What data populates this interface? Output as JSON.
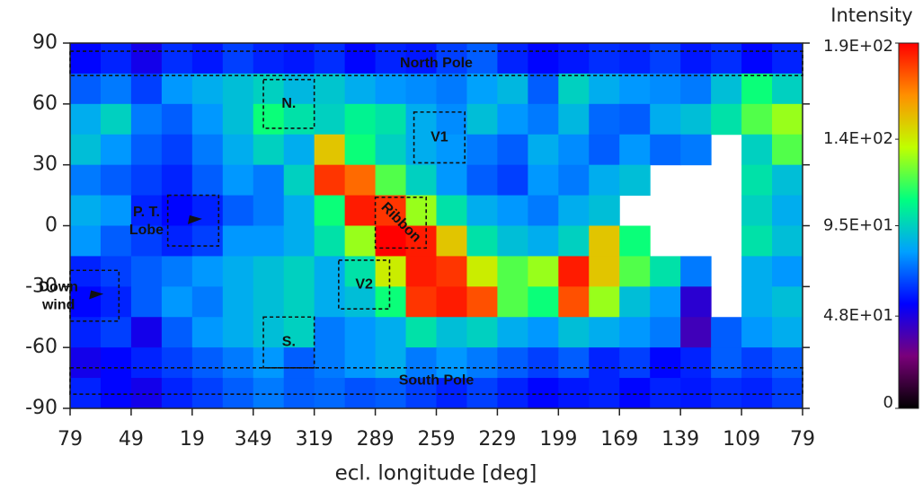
{
  "chart_data": {
    "type": "heatmap",
    "colorbar_title": "Intensity",
    "x_label": "ecl. longitude [deg]",
    "xlim": [
      439,
      79
    ],
    "xticks": [
      {
        "value": 439,
        "label": "79"
      },
      {
        "value": 409,
        "label": "49"
      },
      {
        "value": 379,
        "label": "19"
      },
      349,
      319,
      289,
      259,
      229,
      199,
      169,
      139,
      109,
      79
    ],
    "ylim": [
      -90,
      90
    ],
    "yticks": [
      90,
      60,
      30,
      0,
      -30,
      -60,
      -90
    ],
    "xbins": [
      439,
      424,
      409,
      394,
      379,
      364,
      349,
      334,
      319,
      304,
      289,
      274,
      259,
      244,
      229,
      214,
      199,
      184,
      169,
      154,
      139,
      124,
      109,
      94,
      79
    ],
    "ybins": [
      90,
      75,
      60,
      45,
      30,
      15,
      0,
      -15,
      -30,
      -45,
      -60,
      -75,
      -90
    ],
    "z": [
      [
        55,
        60,
        50,
        62,
        58,
        65,
        60,
        58,
        62,
        55,
        60,
        58,
        65,
        70,
        60,
        55,
        58,
        62,
        60,
        65,
        58,
        62,
        55,
        60
      ],
      [
        70,
        75,
        65,
        80,
        85,
        90,
        95,
        88,
        92,
        85,
        80,
        78,
        75,
        82,
        88,
        70,
        95,
        85,
        80,
        78,
        75,
        90,
        110,
        95
      ],
      [
        85,
        95,
        75,
        70,
        80,
        90,
        110,
        100,
        95,
        105,
        100,
        85,
        78,
        90,
        80,
        75,
        88,
        72,
        70,
        85,
        90,
        100,
        120,
        130
      ],
      [
        90,
        80,
        70,
        65,
        75,
        85,
        95,
        85,
        150,
        110,
        95,
        85,
        80,
        75,
        70,
        85,
        78,
        70,
        80,
        72,
        75,
        null,
        95,
        120
      ],
      [
        75,
        70,
        65,
        60,
        70,
        80,
        75,
        95,
        180,
        170,
        120,
        95,
        80,
        70,
        65,
        80,
        75,
        85,
        90,
        null,
        null,
        null,
        100,
        90
      ],
      [
        85,
        80,
        60,
        55,
        60,
        70,
        75,
        85,
        110,
        185,
        180,
        130,
        100,
        85,
        80,
        75,
        85,
        90,
        null,
        null,
        null,
        null,
        95,
        85
      ],
      [
        80,
        70,
        65,
        60,
        65,
        80,
        80,
        85,
        100,
        130,
        190,
        185,
        150,
        100,
        90,
        85,
        95,
        150,
        110,
        null,
        null,
        null,
        100,
        90
      ],
      [
        60,
        65,
        70,
        75,
        80,
        85,
        90,
        95,
        85,
        100,
        140,
        185,
        180,
        140,
        120,
        130,
        185,
        150,
        120,
        100,
        75,
        null,
        85,
        80
      ],
      [
        55,
        60,
        70,
        80,
        75,
        85,
        90,
        95,
        85,
        90,
        110,
        180,
        185,
        175,
        120,
        110,
        175,
        130,
        90,
        80,
        45,
        null,
        85,
        90
      ],
      [
        60,
        65,
        50,
        70,
        80,
        85,
        90,
        95,
        75,
        80,
        85,
        100,
        90,
        95,
        85,
        80,
        90,
        85,
        80,
        75,
        40,
        70,
        80,
        85
      ],
      [
        50,
        55,
        60,
        65,
        70,
        75,
        80,
        70,
        75,
        80,
        85,
        75,
        80,
        75,
        70,
        65,
        70,
        60,
        65,
        55,
        60,
        70,
        65,
        70
      ],
      [
        60,
        55,
        50,
        60,
        65,
        70,
        75,
        70,
        72,
        68,
        70,
        65,
        60,
        65,
        60,
        55,
        58,
        60,
        55,
        60,
        58,
        62,
        60,
        65
      ]
    ],
    "zlim": [
      0,
      190
    ],
    "zticks": [
      {
        "value": 190,
        "label": "1.9E+02"
      },
      {
        "value": 140,
        "label": "1.4E+02"
      },
      {
        "value": 95,
        "label": "9.5E+01"
      },
      {
        "value": 48,
        "label": "4.8E+01"
      },
      0
    ],
    "colorscale": [
      "#000000",
      "#7a007a",
      "#0000ff",
      "#00a0ff",
      "#00ff80",
      "#c0ff00",
      "#ff9000",
      "#ff0000"
    ],
    "annotations": [
      {
        "label": "North Pole",
        "lon": [
          439,
          79
        ],
        "lat": [
          74,
          86
        ]
      },
      {
        "label": "N.",
        "lon": [
          344,
          319
        ],
        "lat": [
          48,
          72
        ]
      },
      {
        "label": "V1",
        "lon": [
          270,
          245
        ],
        "lat": [
          31,
          56
        ]
      },
      {
        "label": "P. T. Lobe",
        "lon": [
          391,
          366
        ],
        "lat": [
          -10,
          15
        ]
      },
      {
        "label": "Ribbon",
        "lon": [
          289,
          264
        ],
        "lat": [
          -11,
          14
        ]
      },
      {
        "label": "V2",
        "lon": [
          307,
          282
        ],
        "lat": [
          -41,
          -17
        ]
      },
      {
        "label": "Down wind",
        "lon": [
          439,
          415
        ],
        "lat": [
          -47,
          -22
        ]
      },
      {
        "label": "S.",
        "lon": [
          344,
          319
        ],
        "lat": [
          -70,
          -45
        ]
      },
      {
        "label": "South Pole",
        "lon": [
          439,
          79
        ],
        "lat": [
          -83,
          -70
        ]
      }
    ]
  }
}
